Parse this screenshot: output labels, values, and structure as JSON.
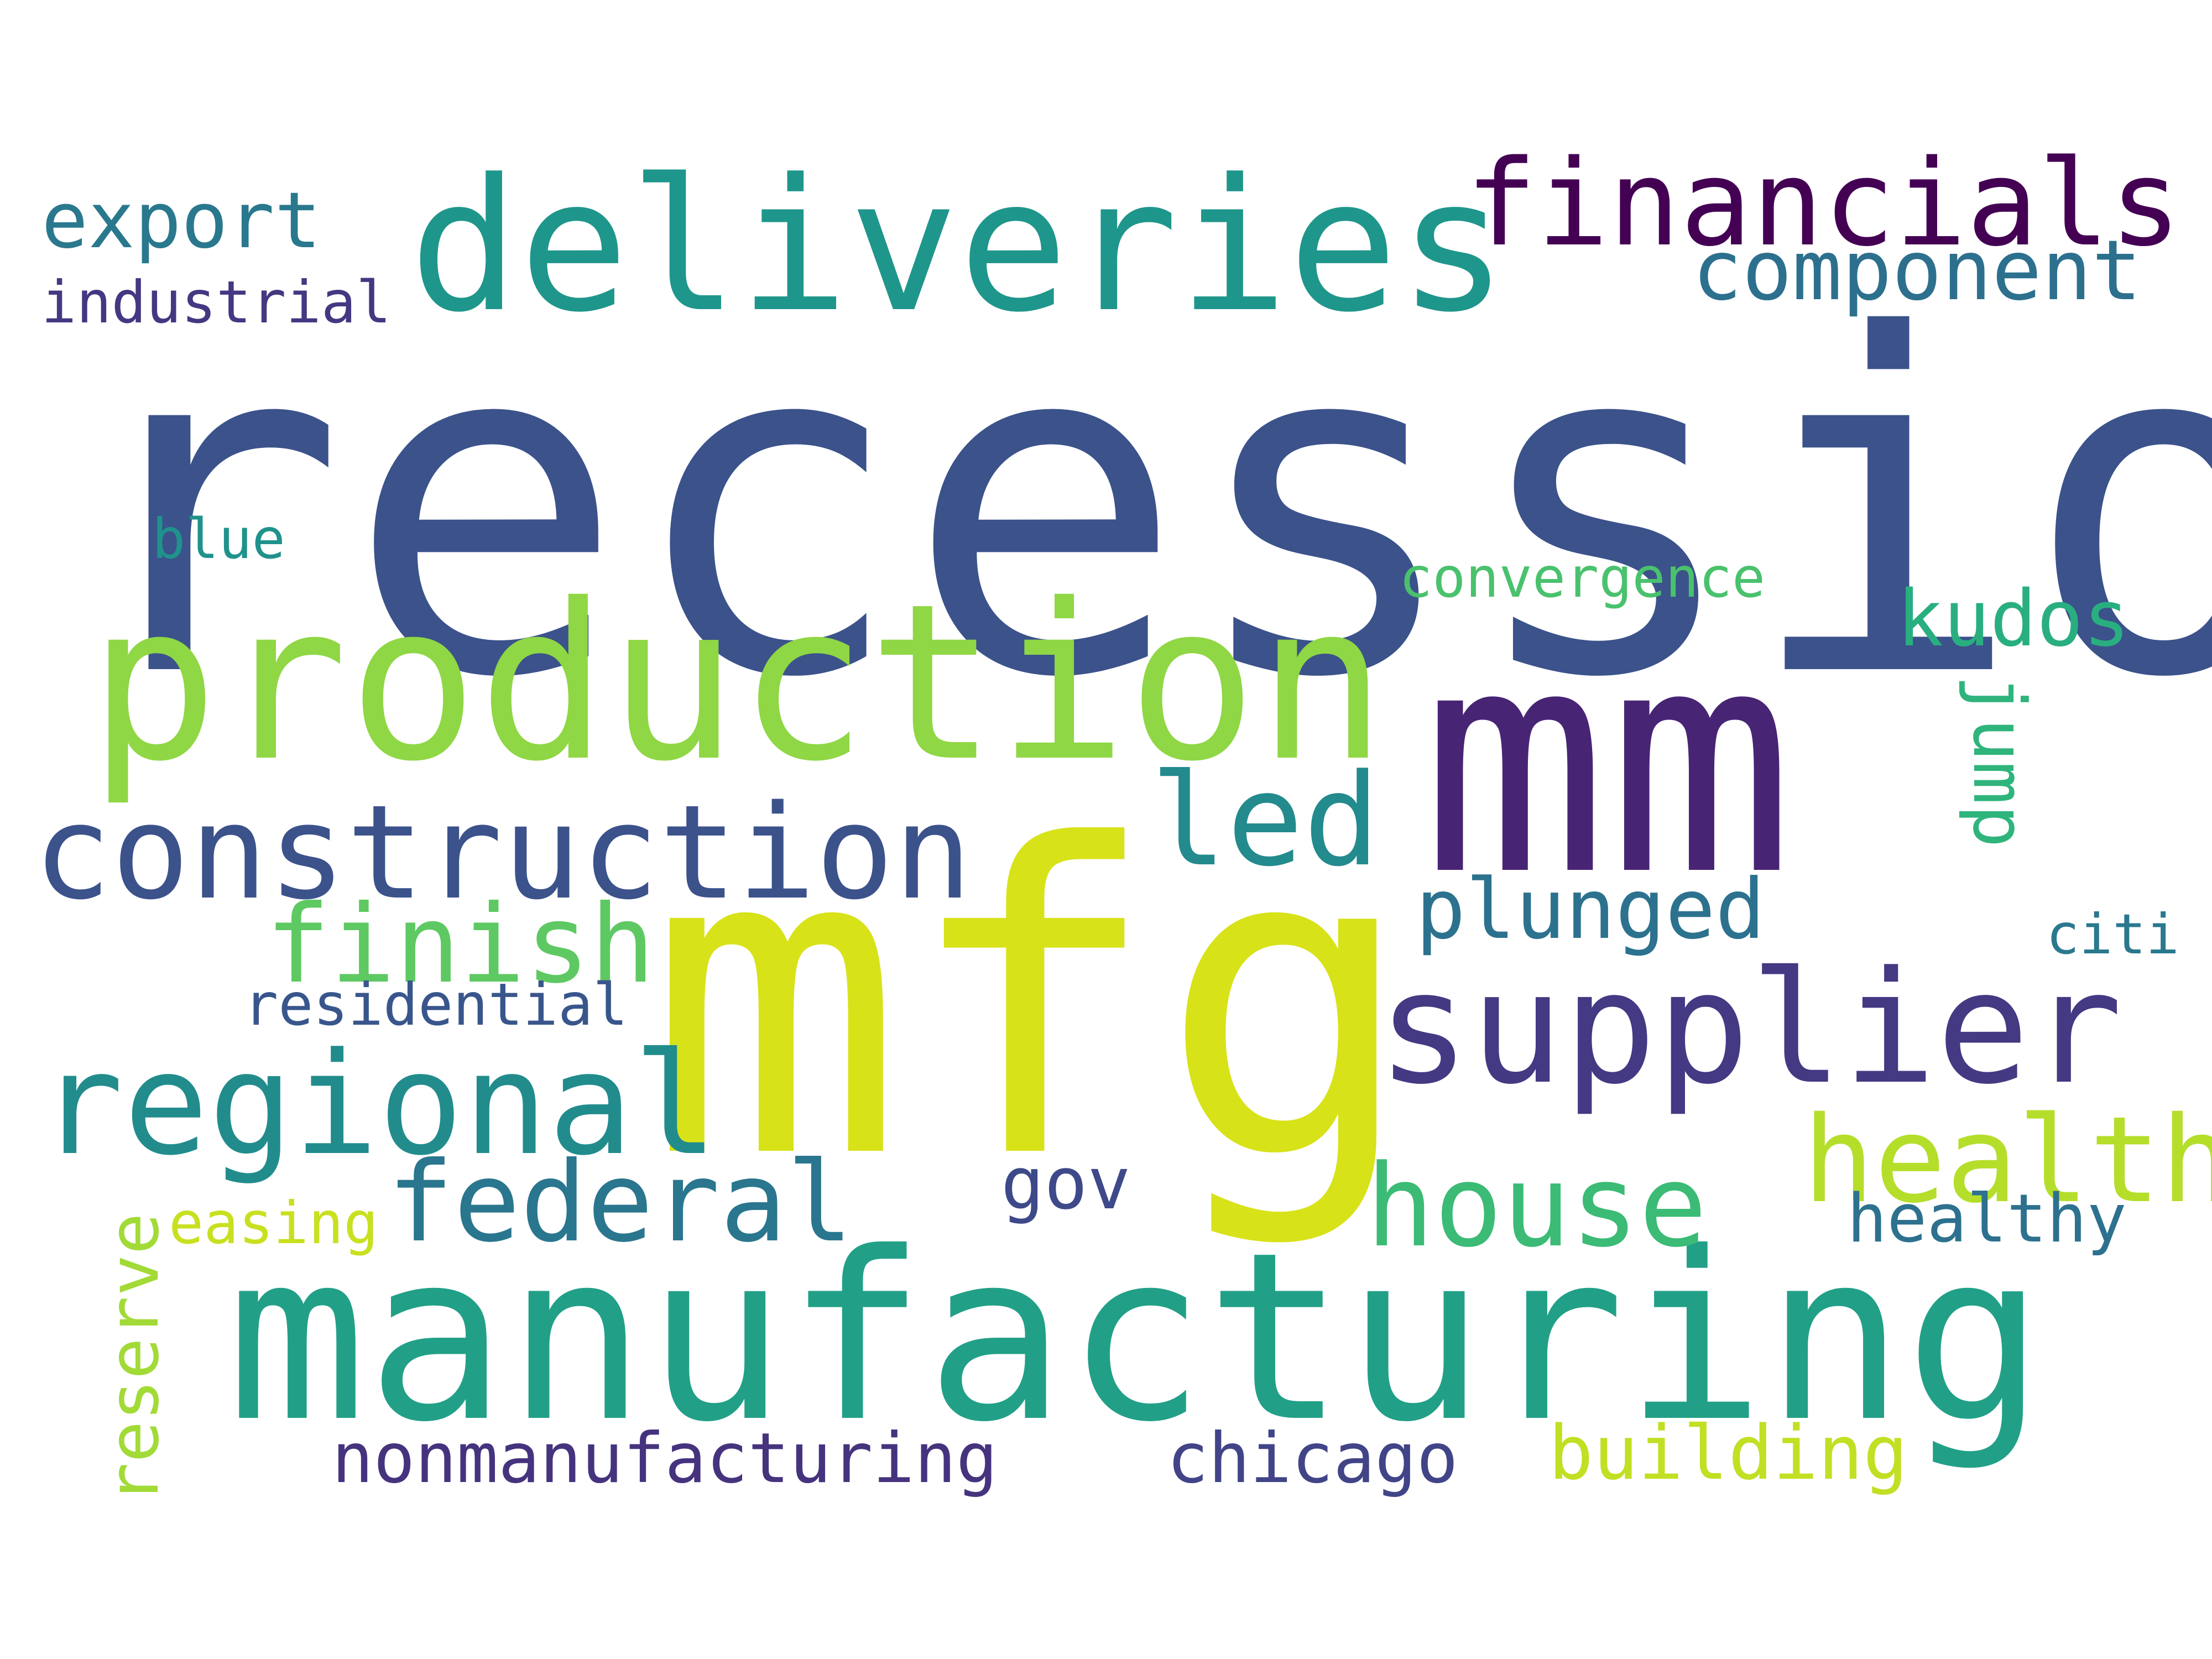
{
  "words": {
    "recession": {
      "text": "recession",
      "color": "#3b528b"
    },
    "mm": {
      "text": "mm",
      "color": "#482475"
    },
    "mfg": {
      "text": "mfg",
      "color": "#d8e219"
    },
    "manufacturing": {
      "text": "manufacturing",
      "color": "#21a087"
    },
    "production": {
      "text": "production",
      "color": "#8fd744"
    },
    "deliveries": {
      "text": "deliveries",
      "color": "#1f968b"
    },
    "financials": {
      "text": "financials",
      "color": "#440154"
    },
    "construction": {
      "text": "construction",
      "color": "#3b528b"
    },
    "supplier": {
      "text": "supplier",
      "color": "#443983"
    },
    "regional": {
      "text": "regional",
      "color": "#228c8d"
    },
    "led": {
      "text": "led",
      "color": "#238a8d"
    },
    "finish": {
      "text": "finish",
      "color": "#5ec962"
    },
    "health": {
      "text": "health",
      "color": "#b5de2b"
    },
    "house": {
      "text": "house",
      "color": "#3bbb75"
    },
    "federal": {
      "text": "federal",
      "color": "#2a768e"
    },
    "component": {
      "text": "component",
      "color": "#2d708e"
    },
    "export": {
      "text": "export",
      "color": "#2a788e"
    },
    "industrial": {
      "text": "industrial",
      "color": "#453781"
    },
    "plunged": {
      "text": "plunged",
      "color": "#2c728e"
    },
    "kudos": {
      "text": "kudos",
      "color": "#29af7f"
    },
    "jump": {
      "text": "jump",
      "color": "#2fb47c"
    },
    "nonmanufacturing": {
      "text": "nonmanufacturing",
      "color": "#46337e"
    },
    "chicago": {
      "text": "chicago",
      "color": "#414487"
    },
    "building": {
      "text": "building",
      "color": "#c2df23"
    },
    "healthy": {
      "text": "healthy",
      "color": "#2d718e"
    },
    "gov": {
      "text": "gov",
      "color": "#3e4989"
    },
    "reserve": {
      "text": "reserve",
      "color": "#a2da37"
    },
    "easing": {
      "text": "easing",
      "color": "#c8e020"
    },
    "residential": {
      "text": "residential",
      "color": "#39568c"
    },
    "convergence": {
      "text": "convergence",
      "color": "#4ac16d"
    },
    "blue": {
      "text": "blue",
      "color": "#20928c"
    },
    "citi": {
      "text": "citi",
      "color": "#2a788e"
    }
  }
}
